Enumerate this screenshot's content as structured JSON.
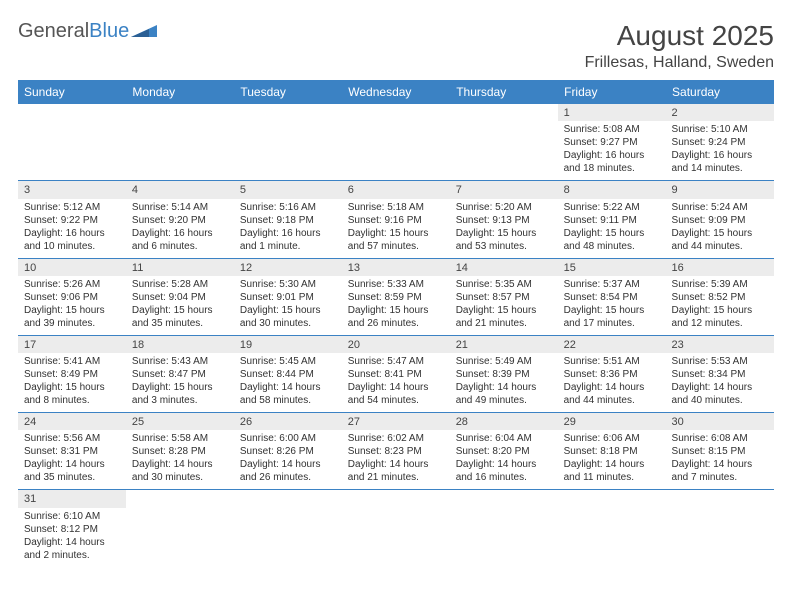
{
  "logo": {
    "word1": "General",
    "word2": "Blue"
  },
  "title": "August 2025",
  "location": "Frillesas, Halland, Sweden",
  "weekdays": [
    "Sunday",
    "Monday",
    "Tuesday",
    "Wednesday",
    "Thursday",
    "Friday",
    "Saturday"
  ],
  "colors": {
    "header_bg": "#3b82c4",
    "header_text": "#ffffff",
    "daynum_bg": "#ececec",
    "border": "#3b82c4",
    "text": "#333333"
  },
  "weeks": [
    [
      null,
      null,
      null,
      null,
      null,
      {
        "n": "1",
        "sr": "Sunrise: 5:08 AM",
        "ss": "Sunset: 9:27 PM",
        "dl": "Daylight: 16 hours and 18 minutes."
      },
      {
        "n": "2",
        "sr": "Sunrise: 5:10 AM",
        "ss": "Sunset: 9:24 PM",
        "dl": "Daylight: 16 hours and 14 minutes."
      }
    ],
    [
      {
        "n": "3",
        "sr": "Sunrise: 5:12 AM",
        "ss": "Sunset: 9:22 PM",
        "dl": "Daylight: 16 hours and 10 minutes."
      },
      {
        "n": "4",
        "sr": "Sunrise: 5:14 AM",
        "ss": "Sunset: 9:20 PM",
        "dl": "Daylight: 16 hours and 6 minutes."
      },
      {
        "n": "5",
        "sr": "Sunrise: 5:16 AM",
        "ss": "Sunset: 9:18 PM",
        "dl": "Daylight: 16 hours and 1 minute."
      },
      {
        "n": "6",
        "sr": "Sunrise: 5:18 AM",
        "ss": "Sunset: 9:16 PM",
        "dl": "Daylight: 15 hours and 57 minutes."
      },
      {
        "n": "7",
        "sr": "Sunrise: 5:20 AM",
        "ss": "Sunset: 9:13 PM",
        "dl": "Daylight: 15 hours and 53 minutes."
      },
      {
        "n": "8",
        "sr": "Sunrise: 5:22 AM",
        "ss": "Sunset: 9:11 PM",
        "dl": "Daylight: 15 hours and 48 minutes."
      },
      {
        "n": "9",
        "sr": "Sunrise: 5:24 AM",
        "ss": "Sunset: 9:09 PM",
        "dl": "Daylight: 15 hours and 44 minutes."
      }
    ],
    [
      {
        "n": "10",
        "sr": "Sunrise: 5:26 AM",
        "ss": "Sunset: 9:06 PM",
        "dl": "Daylight: 15 hours and 39 minutes."
      },
      {
        "n": "11",
        "sr": "Sunrise: 5:28 AM",
        "ss": "Sunset: 9:04 PM",
        "dl": "Daylight: 15 hours and 35 minutes."
      },
      {
        "n": "12",
        "sr": "Sunrise: 5:30 AM",
        "ss": "Sunset: 9:01 PM",
        "dl": "Daylight: 15 hours and 30 minutes."
      },
      {
        "n": "13",
        "sr": "Sunrise: 5:33 AM",
        "ss": "Sunset: 8:59 PM",
        "dl": "Daylight: 15 hours and 26 minutes."
      },
      {
        "n": "14",
        "sr": "Sunrise: 5:35 AM",
        "ss": "Sunset: 8:57 PM",
        "dl": "Daylight: 15 hours and 21 minutes."
      },
      {
        "n": "15",
        "sr": "Sunrise: 5:37 AM",
        "ss": "Sunset: 8:54 PM",
        "dl": "Daylight: 15 hours and 17 minutes."
      },
      {
        "n": "16",
        "sr": "Sunrise: 5:39 AM",
        "ss": "Sunset: 8:52 PM",
        "dl": "Daylight: 15 hours and 12 minutes."
      }
    ],
    [
      {
        "n": "17",
        "sr": "Sunrise: 5:41 AM",
        "ss": "Sunset: 8:49 PM",
        "dl": "Daylight: 15 hours and 8 minutes."
      },
      {
        "n": "18",
        "sr": "Sunrise: 5:43 AM",
        "ss": "Sunset: 8:47 PM",
        "dl": "Daylight: 15 hours and 3 minutes."
      },
      {
        "n": "19",
        "sr": "Sunrise: 5:45 AM",
        "ss": "Sunset: 8:44 PM",
        "dl": "Daylight: 14 hours and 58 minutes."
      },
      {
        "n": "20",
        "sr": "Sunrise: 5:47 AM",
        "ss": "Sunset: 8:41 PM",
        "dl": "Daylight: 14 hours and 54 minutes."
      },
      {
        "n": "21",
        "sr": "Sunrise: 5:49 AM",
        "ss": "Sunset: 8:39 PM",
        "dl": "Daylight: 14 hours and 49 minutes."
      },
      {
        "n": "22",
        "sr": "Sunrise: 5:51 AM",
        "ss": "Sunset: 8:36 PM",
        "dl": "Daylight: 14 hours and 44 minutes."
      },
      {
        "n": "23",
        "sr": "Sunrise: 5:53 AM",
        "ss": "Sunset: 8:34 PM",
        "dl": "Daylight: 14 hours and 40 minutes."
      }
    ],
    [
      {
        "n": "24",
        "sr": "Sunrise: 5:56 AM",
        "ss": "Sunset: 8:31 PM",
        "dl": "Daylight: 14 hours and 35 minutes."
      },
      {
        "n": "25",
        "sr": "Sunrise: 5:58 AM",
        "ss": "Sunset: 8:28 PM",
        "dl": "Daylight: 14 hours and 30 minutes."
      },
      {
        "n": "26",
        "sr": "Sunrise: 6:00 AM",
        "ss": "Sunset: 8:26 PM",
        "dl": "Daylight: 14 hours and 26 minutes."
      },
      {
        "n": "27",
        "sr": "Sunrise: 6:02 AM",
        "ss": "Sunset: 8:23 PM",
        "dl": "Daylight: 14 hours and 21 minutes."
      },
      {
        "n": "28",
        "sr": "Sunrise: 6:04 AM",
        "ss": "Sunset: 8:20 PM",
        "dl": "Daylight: 14 hours and 16 minutes."
      },
      {
        "n": "29",
        "sr": "Sunrise: 6:06 AM",
        "ss": "Sunset: 8:18 PM",
        "dl": "Daylight: 14 hours and 11 minutes."
      },
      {
        "n": "30",
        "sr": "Sunrise: 6:08 AM",
        "ss": "Sunset: 8:15 PM",
        "dl": "Daylight: 14 hours and 7 minutes."
      }
    ],
    [
      {
        "n": "31",
        "sr": "Sunrise: 6:10 AM",
        "ss": "Sunset: 8:12 PM",
        "dl": "Daylight: 14 hours and 2 minutes."
      },
      null,
      null,
      null,
      null,
      null,
      null
    ]
  ]
}
